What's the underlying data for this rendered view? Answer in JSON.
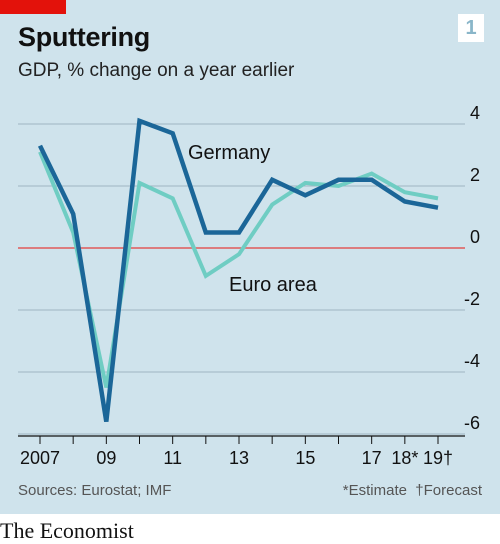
{
  "header": {
    "badge": "1",
    "title": "Sputtering",
    "subtitle": "GDP, % change on a year earlier"
  },
  "footer": {
    "sources": "Sources: Eurostat; IMF",
    "notes": "*Estimate  †Forecast"
  },
  "brand": "The Economist",
  "colors": {
    "background": "#cfe3ec",
    "germany": "#1b6698",
    "euro_area": "#6fcdc3",
    "zero_line": "#e05a5a",
    "grid": "#9fb6c2",
    "red_tag": "#e3120b"
  },
  "chart_data": {
    "type": "line",
    "title": "Sputtering",
    "subtitle": "GDP, % change on a year earlier",
    "x": [
      2007,
      2008,
      2009,
      2010,
      2011,
      2012,
      2013,
      2014,
      2015,
      2016,
      2017,
      2018,
      2019
    ],
    "x_tick_labels": [
      {
        "x": 2007,
        "label": "2007"
      },
      {
        "x": 2009,
        "label": "09"
      },
      {
        "x": 2011,
        "label": "11"
      },
      {
        "x": 2013,
        "label": "13"
      },
      {
        "x": 2015,
        "label": "15"
      },
      {
        "x": 2017,
        "label": "17"
      },
      {
        "x": 2018,
        "label": "18*"
      },
      {
        "x": 2019,
        "label": "19†"
      }
    ],
    "y_ticks": [
      4,
      2,
      0,
      -2,
      -4,
      -6
    ],
    "y_tick_labels": [
      "4",
      "2",
      "0",
      "-2",
      "-4",
      "-6"
    ],
    "ylim": [
      -6,
      4
    ],
    "grid": true,
    "y_axis_side": "right",
    "series": [
      {
        "name": "Germany",
        "values": [
          3.3,
          1.1,
          -5.6,
          4.1,
          3.7,
          0.5,
          0.5,
          2.2,
          1.7,
          2.2,
          2.2,
          1.5,
          1.3
        ]
      },
      {
        "name": "Euro area",
        "values": [
          3.1,
          0.5,
          -4.5,
          2.1,
          1.6,
          -0.9,
          -0.2,
          1.4,
          2.1,
          2.0,
          2.4,
          1.8,
          1.6
        ]
      }
    ]
  }
}
